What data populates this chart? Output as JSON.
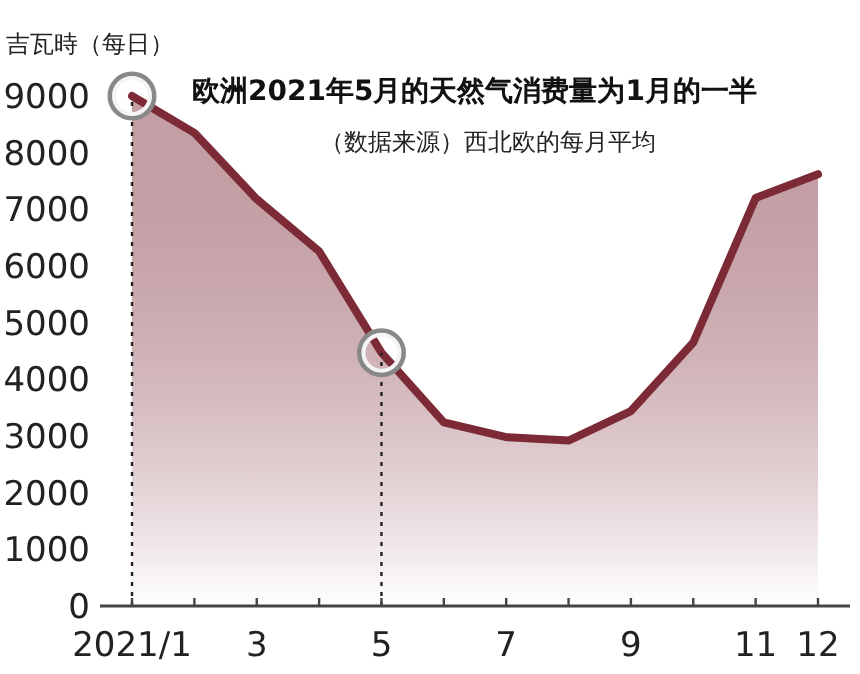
{
  "chart_data": {
    "type": "area",
    "title": "欧洲2021年5月的天然气消费量为1月的一半",
    "subtitle": "（数据来源）西北欧的每月平均",
    "ylabel": "吉瓦時（每日）",
    "categories": [
      "2021/1",
      null,
      "3",
      null,
      "5",
      null,
      "7",
      null,
      "9",
      null,
      "11",
      "12"
    ],
    "values": [
      9000,
      8350,
      7180,
      6260,
      4470,
      3240,
      2980,
      2920,
      3440,
      4650,
      7200,
      7620
    ],
    "color": "#7b2a36",
    "ylim": [
      0,
      9000
    ],
    "yticks": [
      0,
      1000,
      2000,
      3000,
      4000,
      5000,
      6000,
      7000,
      8000,
      9000
    ],
    "ref_lines": [
      {
        "axis": "x",
        "value": "2021/1",
        "line_style": "dotted",
        "color": "#222222"
      },
      {
        "axis": "x",
        "value": "5",
        "line_style": "dotted",
        "color": "#222222"
      }
    ]
  }
}
